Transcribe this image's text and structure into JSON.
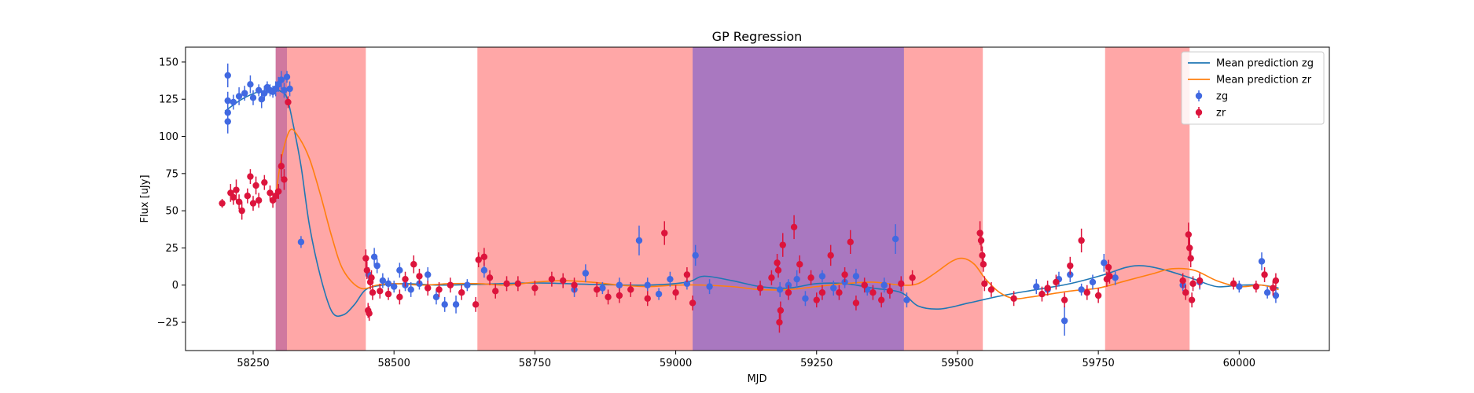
{
  "chart_data": {
    "type": "scatter",
    "title": "GP Regression",
    "xlabel": "MJD",
    "ylabel": "Flux [uJy]",
    "xlim": [
      58130,
      60160
    ],
    "ylim": [
      -44,
      160
    ],
    "xticks": [
      58250,
      58500,
      58750,
      59000,
      59250,
      59500,
      59750,
      60000
    ],
    "xtick_labels": [
      "58250",
      "58500",
      "58750",
      "59000",
      "59250",
      "59500",
      "59750",
      "60000"
    ],
    "yticks": [
      -25,
      0,
      25,
      50,
      75,
      100,
      125,
      150
    ],
    "ytick_labels": [
      "−25",
      "0",
      "25",
      "50",
      "75",
      "100",
      "125",
      "150"
    ],
    "grid": false,
    "legend_position": "top-right",
    "legend": [
      {
        "label": "Mean prediction zg",
        "kind": "line",
        "color": "#1f77b4"
      },
      {
        "label": "Mean prediction zr",
        "kind": "line",
        "color": "#ff7f0e"
      },
      {
        "label": "zg",
        "kind": "errorbar",
        "color": "#4169e1"
      },
      {
        "label": "zr",
        "kind": "errorbar",
        "color": "#dc143c"
      }
    ],
    "shaded_regions": [
      {
        "band": "zg",
        "color": "#4040e0",
        "alpha": 0.45,
        "x": [
          58290,
          58310
        ]
      },
      {
        "band": "zr",
        "color": "#ff3b3b",
        "alpha": 0.45,
        "x": [
          58290,
          58450
        ]
      },
      {
        "band": "zr",
        "color": "#ff3b3b",
        "alpha": 0.45,
        "x": [
          58648,
          59545
        ]
      },
      {
        "band": "zg",
        "color": "#4040e0",
        "alpha": 0.45,
        "x": [
          59030,
          59405
        ]
      },
      {
        "band": "zr",
        "color": "#ff3b3b",
        "alpha": 0.45,
        "x": [
          59762,
          59912
        ]
      }
    ],
    "series": [
      {
        "name": "Mean prediction zg",
        "type": "line",
        "color": "#1f77b4",
        "x": [
          58200,
          58230,
          58260,
          58290,
          58300,
          58310,
          58320,
          58335,
          58350,
          58370,
          58390,
          58410,
          58430,
          58450,
          58480,
          58520,
          58580,
          58650,
          58750,
          58850,
          58950,
          59020,
          59050,
          59100,
          59150,
          59200,
          59250,
          59300,
          59350,
          59400,
          59430,
          59470,
          59520,
          59580,
          59640,
          59700,
          59760,
          59800,
          59830,
          59870,
          59920,
          59960,
          60000,
          60040,
          60070
        ],
        "y": [
          117,
          125,
          130,
          131,
          130,
          126,
          110,
          80,
          40,
          5,
          -18,
          -20,
          -13,
          -3,
          0,
          1,
          0,
          0.5,
          1.5,
          0.5,
          0,
          2,
          6,
          3,
          -1,
          -2,
          1,
          1,
          -2,
          -5,
          -14,
          -16,
          -12,
          -7,
          -3,
          1,
          7,
          12,
          13,
          10,
          4,
          -1,
          0,
          0,
          -2
        ]
      },
      {
        "name": "Mean prediction zr",
        "type": "line",
        "color": "#ff7f0e",
        "x": [
          58290,
          58300,
          58315,
          58330,
          58350,
          58370,
          58390,
          58410,
          58440,
          58470,
          58500,
          58550,
          58600,
          58650,
          58700,
          58750,
          58800,
          58850,
          58900,
          58950,
          59000,
          59050,
          59100,
          59150,
          59200,
          59250,
          59300,
          59350,
          59400,
          59430,
          59460,
          59490,
          59510,
          59530,
          59550,
          59575,
          59600,
          59630,
          59700,
          59750,
          59800,
          59850,
          59880,
          59920,
          59960,
          60000,
          60040,
          60070
        ],
        "y": [
          60,
          85,
          104,
          100,
          85,
          60,
          32,
          10,
          -2,
          0,
          1,
          0,
          1,
          1,
          0,
          2,
          3,
          2,
          0,
          -1,
          0,
          0,
          -1,
          -3,
          -3,
          -1,
          1,
          2,
          0,
          1,
          8,
          16,
          18,
          14,
          4,
          -5,
          -9,
          -8,
          -4,
          -2,
          3,
          8,
          11,
          10,
          3,
          -1,
          0,
          -3
        ]
      },
      {
        "name": "zg",
        "type": "errorbar",
        "color": "#4169e1",
        "points": [
          [
            58205,
            141,
            8
          ],
          [
            58205,
            124,
            6
          ],
          [
            58205,
            116,
            6
          ],
          [
            58205,
            110,
            8
          ],
          [
            58215,
            123,
            5
          ],
          [
            58225,
            127,
            6
          ],
          [
            58235,
            129,
            5
          ],
          [
            58245,
            135,
            6
          ],
          [
            58250,
            126,
            5
          ],
          [
            58260,
            131,
            4
          ],
          [
            58265,
            125,
            6
          ],
          [
            58270,
            129,
            5
          ],
          [
            58275,
            133,
            4
          ],
          [
            58280,
            131,
            4
          ],
          [
            58285,
            130,
            4
          ],
          [
            58290,
            132,
            5
          ],
          [
            58295,
            135,
            5
          ],
          [
            58300,
            138,
            6
          ],
          [
            58305,
            131,
            5
          ],
          [
            58310,
            140,
            4
          ],
          [
            58315,
            132,
            5
          ],
          [
            58335,
            29,
            4
          ],
          [
            58455,
            7,
            5
          ],
          [
            58465,
            19,
            6
          ],
          [
            58470,
            13,
            5
          ],
          [
            58480,
            3,
            5
          ],
          [
            58490,
            1,
            4
          ],
          [
            58500,
            -1,
            4
          ],
          [
            58510,
            10,
            5
          ],
          [
            58520,
            0,
            4
          ],
          [
            58530,
            -3,
            5
          ],
          [
            58545,
            1,
            4
          ],
          [
            58560,
            7,
            5
          ],
          [
            58575,
            -8,
            5
          ],
          [
            58590,
            -13,
            5
          ],
          [
            58610,
            -13,
            6
          ],
          [
            58630,
            0,
            4
          ],
          [
            58660,
            10,
            5
          ],
          [
            58820,
            -3,
            5
          ],
          [
            58840,
            8,
            6
          ],
          [
            58870,
            -2,
            4
          ],
          [
            58900,
            0,
            5
          ],
          [
            58935,
            30,
            10
          ],
          [
            58950,
            0,
            5
          ],
          [
            58970,
            -6,
            4
          ],
          [
            58990,
            4,
            5
          ],
          [
            59020,
            1,
            4
          ],
          [
            59035,
            20,
            7
          ],
          [
            59060,
            -1,
            5
          ],
          [
            59185,
            -3,
            5
          ],
          [
            59200,
            0,
            4
          ],
          [
            59215,
            4,
            6
          ],
          [
            59230,
            -9,
            5
          ],
          [
            59260,
            6,
            4
          ],
          [
            59280,
            -2,
            5
          ],
          [
            59300,
            2,
            4
          ],
          [
            59320,
            6,
            5
          ],
          [
            59340,
            -3,
            4
          ],
          [
            59370,
            0,
            5
          ],
          [
            59390,
            31,
            10
          ],
          [
            59410,
            -10,
            5
          ],
          [
            59640,
            -1,
            5
          ],
          [
            59660,
            -3,
            4
          ],
          [
            59680,
            4,
            5
          ],
          [
            59690,
            -24,
            10
          ],
          [
            59700,
            7,
            5
          ],
          [
            59720,
            -3,
            4
          ],
          [
            59740,
            2,
            5
          ],
          [
            59760,
            15,
            6
          ],
          [
            59780,
            5,
            5
          ],
          [
            59900,
            0,
            4
          ],
          [
            59930,
            2,
            5
          ],
          [
            60000,
            -1,
            4
          ],
          [
            60040,
            16,
            6
          ],
          [
            60050,
            -5,
            4
          ],
          [
            60065,
            -7,
            5
          ]
        ]
      },
      {
        "name": "zr",
        "type": "errorbar",
        "color": "#dc143c",
        "points": [
          [
            58195,
            55,
            3
          ],
          [
            58210,
            62,
            6
          ],
          [
            58215,
            59,
            5
          ],
          [
            58220,
            64,
            7
          ],
          [
            58225,
            56,
            5
          ],
          [
            58230,
            50,
            6
          ],
          [
            58240,
            60,
            5
          ],
          [
            58245,
            73,
            5
          ],
          [
            58250,
            55,
            5
          ],
          [
            58255,
            67,
            6
          ],
          [
            58260,
            57,
            5
          ],
          [
            58270,
            69,
            5
          ],
          [
            58280,
            62,
            5
          ],
          [
            58285,
            57,
            5
          ],
          [
            58290,
            60,
            4
          ],
          [
            58295,
            63,
            5
          ],
          [
            58300,
            80,
            8
          ],
          [
            58305,
            71,
            7
          ],
          [
            58312,
            123,
            4
          ],
          [
            58450,
            18,
            6
          ],
          [
            58452,
            10,
            6
          ],
          [
            58454,
            -17,
            5
          ],
          [
            58456,
            -19,
            5
          ],
          [
            58458,
            2,
            5
          ],
          [
            58460,
            5,
            5
          ],
          [
            58462,
            -5,
            5
          ],
          [
            58475,
            -4,
            5
          ],
          [
            58490,
            -6,
            4
          ],
          [
            58510,
            -8,
            5
          ],
          [
            58520,
            4,
            5
          ],
          [
            58535,
            14,
            6
          ],
          [
            58545,
            6,
            5
          ],
          [
            58560,
            -2,
            5
          ],
          [
            58580,
            -3,
            5
          ],
          [
            58600,
            0,
            5
          ],
          [
            58620,
            -5,
            5
          ],
          [
            58645,
            -13,
            5
          ],
          [
            58650,
            17,
            5
          ],
          [
            58660,
            19,
            6
          ],
          [
            58670,
            5,
            5
          ],
          [
            58680,
            -4,
            5
          ],
          [
            58700,
            1,
            5
          ],
          [
            58720,
            1,
            5
          ],
          [
            58750,
            -2,
            5
          ],
          [
            58780,
            4,
            5
          ],
          [
            58800,
            3,
            5
          ],
          [
            58820,
            0,
            5
          ],
          [
            58860,
            -3,
            5
          ],
          [
            58880,
            -8,
            5
          ],
          [
            58900,
            -7,
            5
          ],
          [
            58920,
            -3,
            5
          ],
          [
            58950,
            -9,
            5
          ],
          [
            58980,
            35,
            8
          ],
          [
            59000,
            -5,
            5
          ],
          [
            59020,
            7,
            5
          ],
          [
            59030,
            -12,
            5
          ],
          [
            59150,
            -2,
            5
          ],
          [
            59170,
            5,
            5
          ],
          [
            59180,
            15,
            6
          ],
          [
            59182,
            10,
            5
          ],
          [
            59184,
            -25,
            7
          ],
          [
            59186,
            -17,
            6
          ],
          [
            59190,
            27,
            8
          ],
          [
            59200,
            -5,
            5
          ],
          [
            59210,
            39,
            8
          ],
          [
            59220,
            14,
            6
          ],
          [
            59240,
            5,
            5
          ],
          [
            59250,
            -10,
            5
          ],
          [
            59260,
            -5,
            5
          ],
          [
            59275,
            20,
            7
          ],
          [
            59290,
            -5,
            5
          ],
          [
            59300,
            7,
            5
          ],
          [
            59310,
            29,
            8
          ],
          [
            59320,
            -12,
            5
          ],
          [
            59335,
            0,
            5
          ],
          [
            59350,
            -5,
            5
          ],
          [
            59365,
            -10,
            5
          ],
          [
            59380,
            -4,
            5
          ],
          [
            59400,
            1,
            5
          ],
          [
            59420,
            5,
            5
          ],
          [
            59540,
            35,
            8
          ],
          [
            59542,
            30,
            7
          ],
          [
            59544,
            20,
            6
          ],
          [
            59546,
            14,
            5
          ],
          [
            59548,
            1,
            5
          ],
          [
            59560,
            -3,
            5
          ],
          [
            59600,
            -9,
            5
          ],
          [
            59650,
            -6,
            5
          ],
          [
            59660,
            -2,
            5
          ],
          [
            59675,
            2,
            5
          ],
          [
            59690,
            -10,
            5
          ],
          [
            59700,
            13,
            6
          ],
          [
            59720,
            30,
            8
          ],
          [
            59730,
            -5,
            5
          ],
          [
            59750,
            -7,
            5
          ],
          [
            59765,
            4,
            5
          ],
          [
            59768,
            12,
            5
          ],
          [
            59770,
            6,
            5
          ],
          [
            59900,
            3,
            5
          ],
          [
            59905,
            -5,
            5
          ],
          [
            59910,
            34,
            8
          ],
          [
            59912,
            25,
            7
          ],
          [
            59914,
            18,
            6
          ],
          [
            59916,
            -10,
            5
          ],
          [
            59918,
            1,
            5
          ],
          [
            59930,
            3,
            5
          ],
          [
            59990,
            1,
            4
          ],
          [
            60030,
            -1,
            4
          ],
          [
            60045,
            7,
            5
          ],
          [
            60060,
            -2,
            5
          ],
          [
            60065,
            3,
            5
          ]
        ]
      }
    ]
  }
}
